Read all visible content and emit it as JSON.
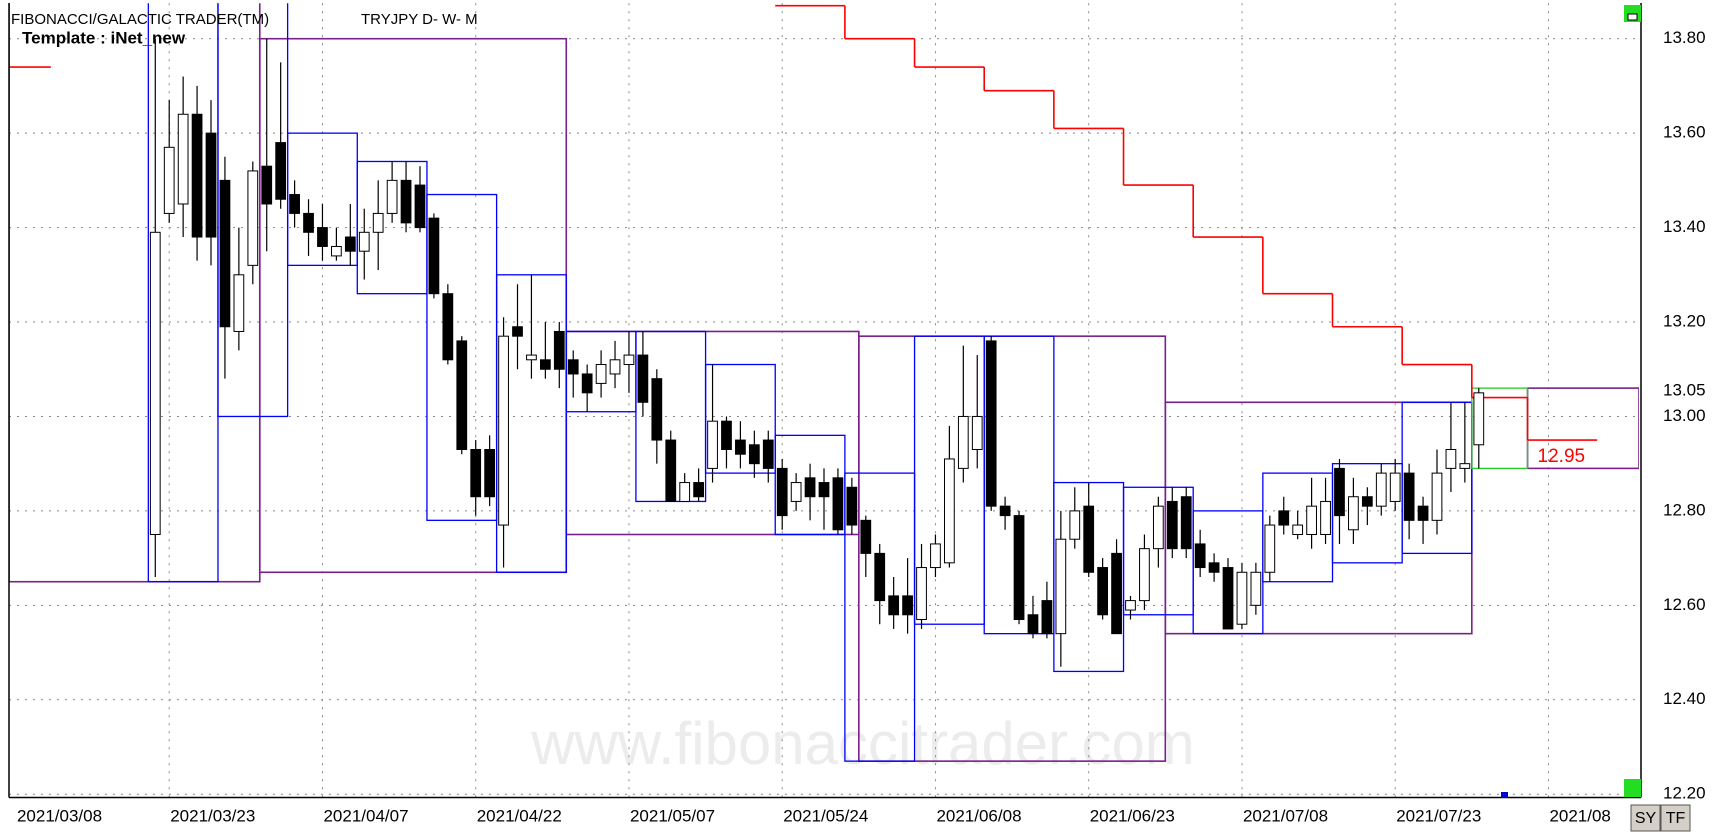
{
  "chart_data": {
    "type": "candlestick",
    "title": "FIBONACCI/GALACTIC TRADER(TM)",
    "subtitle": "TRYJPY D- W- M",
    "template": "Template : iNet_new",
    "watermark": "www.fibonaccitrader.com",
    "categories": [
      "2021/03/08",
      null,
      null,
      null,
      null,
      null,
      null,
      null,
      null,
      null,
      null,
      "2021/03/23",
      null,
      null,
      null,
      null,
      null,
      null,
      null,
      null,
      null,
      null,
      "2021/04/07",
      null,
      null,
      null,
      null,
      null,
      null,
      null,
      null,
      null,
      null,
      "2021/04/22",
      null,
      null,
      null,
      null,
      null,
      null,
      null,
      null,
      null,
      null,
      "2021/05/07",
      null,
      null,
      null,
      null,
      null,
      null,
      null,
      null,
      null,
      null,
      "2021/05/24",
      null,
      null,
      null,
      null,
      null,
      null,
      null,
      null,
      null,
      null,
      "2021/06/08",
      null,
      null,
      null,
      null,
      null,
      null,
      null,
      null,
      null,
      null,
      "2021/06/23",
      null,
      null,
      null,
      null,
      null,
      null,
      null,
      null,
      null,
      null,
      "2021/07/08",
      null,
      null,
      null,
      null,
      null,
      null,
      null,
      null,
      null,
      null,
      "2021/07/23",
      null,
      null,
      null,
      null,
      null,
      null,
      null,
      null,
      null,
      null,
      "2021/08",
      null,
      null,
      null,
      null,
      null,
      null
    ],
    "open": [
      null,
      null,
      null,
      null,
      null,
      null,
      null,
      null,
      null,
      null,
      12.75,
      13.43,
      13.45,
      13.64,
      13.6,
      13.5,
      13.18,
      13.32,
      13.53,
      13.58,
      13.47,
      13.43,
      13.4,
      13.34,
      13.38,
      13.35,
      13.39,
      13.43,
      13.5,
      13.49,
      13.42,
      13.26,
      13.16,
      12.93,
      12.93,
      12.77,
      13.19,
      13.12,
      13.12,
      13.18,
      13.12,
      13.09,
      13.07,
      13.09,
      13.11,
      13.13,
      13.08,
      12.95,
      12.82,
      12.86,
      12.89,
      12.99,
      12.95,
      12.94,
      12.95,
      12.89,
      12.82,
      12.87,
      12.86,
      12.87,
      12.85,
      12.78,
      12.71,
      12.62,
      12.62,
      12.57,
      12.68,
      12.69,
      12.89,
      12.93,
      13.16,
      12.81,
      12.79,
      12.58,
      12.61,
      12.54,
      12.74,
      12.81,
      12.68,
      12.71,
      12.59,
      12.61,
      12.72,
      12.82,
      12.83,
      12.73,
      12.69,
      12.68,
      12.56,
      12.6,
      12.67,
      12.8,
      12.75,
      12.75,
      12.75,
      12.89,
      12.76,
      12.83,
      12.81,
      12.82,
      12.88,
      12.81,
      12.78,
      12.89,
      12.89,
      12.94,
      null,
      null,
      null,
      null,
      null,
      null,
      null,
      null,
      null,
      null,
      null
    ],
    "high": [
      null,
      null,
      null,
      null,
      null,
      null,
      null,
      null,
      null,
      null,
      13.8,
      13.67,
      13.72,
      13.7,
      13.67,
      13.55,
      13.4,
      13.54,
      13.8,
      13.75,
      13.5,
      13.46,
      13.45,
      13.4,
      13.45,
      13.44,
      13.5,
      13.54,
      13.54,
      13.53,
      13.43,
      13.28,
      13.17,
      12.95,
      12.96,
      13.21,
      13.28,
      13.3,
      13.2,
      13.2,
      13.14,
      13.11,
      13.14,
      13.16,
      13.18,
      13.18,
      13.1,
      12.97,
      12.88,
      12.89,
      13.11,
      13.0,
      12.99,
      12.97,
      12.97,
      12.91,
      12.88,
      12.9,
      12.89,
      12.89,
      12.87,
      12.79,
      12.73,
      12.66,
      12.7,
      12.73,
      12.75,
      12.98,
      13.15,
      13.13,
      13.17,
      12.83,
      12.8,
      12.62,
      12.65,
      12.8,
      12.85,
      12.86,
      12.7,
      12.74,
      12.62,
      12.75,
      12.83,
      12.85,
      12.85,
      12.76,
      12.71,
      12.7,
      12.69,
      12.69,
      12.79,
      12.83,
      12.8,
      12.87,
      12.87,
      12.91,
      12.87,
      12.85,
      12.9,
      12.91,
      12.9,
      12.83,
      12.93,
      13.03,
      13.03,
      13.06,
      null,
      null,
      null,
      null,
      null,
      null,
      null,
      null,
      null,
      null,
      null
    ],
    "low": [
      null,
      null,
      null,
      null,
      null,
      null,
      null,
      null,
      null,
      null,
      12.66,
      13.41,
      13.38,
      13.33,
      13.32,
      13.08,
      13.14,
      13.28,
      13.35,
      13.44,
      13.4,
      13.34,
      13.33,
      13.33,
      13.32,
      13.29,
      13.31,
      13.41,
      13.39,
      13.39,
      13.25,
      13.11,
      12.92,
      12.79,
      12.81,
      12.68,
      13.1,
      13.08,
      13.08,
      13.06,
      13.04,
      13.01,
      13.04,
      13.06,
      13.05,
      13.0,
      12.9,
      12.82,
      12.82,
      12.82,
      12.86,
      12.89,
      12.89,
      12.87,
      12.86,
      12.76,
      12.8,
      12.78,
      12.76,
      12.75,
      12.75,
      12.66,
      12.56,
      12.55,
      12.54,
      12.55,
      12.66,
      12.68,
      12.86,
      12.89,
      12.8,
      12.76,
      12.56,
      12.53,
      12.53,
      12.47,
      12.72,
      12.66,
      12.57,
      12.54,
      12.57,
      12.59,
      12.68,
      12.7,
      12.7,
      12.66,
      12.65,
      12.55,
      12.55,
      12.58,
      12.65,
      12.75,
      12.74,
      12.72,
      12.73,
      12.73,
      12.73,
      12.77,
      12.79,
      12.8,
      12.74,
      12.73,
      12.75,
      12.84,
      12.86,
      12.89,
      null,
      null,
      null,
      null,
      null,
      null,
      null,
      null,
      null,
      null,
      null
    ],
    "close": [
      null,
      null,
      null,
      null,
      null,
      null,
      null,
      null,
      null,
      null,
      13.39,
      13.57,
      13.64,
      13.38,
      13.38,
      13.19,
      13.3,
      13.52,
      13.45,
      13.46,
      13.43,
      13.39,
      13.36,
      13.36,
      13.35,
      13.39,
      13.43,
      13.5,
      13.41,
      13.4,
      13.26,
      13.12,
      12.93,
      12.83,
      12.83,
      13.17,
      13.17,
      13.13,
      13.1,
      13.1,
      13.09,
      13.05,
      13.11,
      13.12,
      13.13,
      13.03,
      12.95,
      12.82,
      12.86,
      12.83,
      12.99,
      12.93,
      12.92,
      12.9,
      12.89,
      12.79,
      12.86,
      12.83,
      12.83,
      12.76,
      12.77,
      12.71,
      12.61,
      12.58,
      12.58,
      12.68,
      12.73,
      12.91,
      13.0,
      13.0,
      12.81,
      12.79,
      12.57,
      12.54,
      12.54,
      12.74,
      12.8,
      12.67,
      12.58,
      12.54,
      12.61,
      12.72,
      12.81,
      12.72,
      12.72,
      12.68,
      12.67,
      12.55,
      12.67,
      12.67,
      12.77,
      12.77,
      12.77,
      12.81,
      12.82,
      12.79,
      12.83,
      12.81,
      12.88,
      12.88,
      12.78,
      12.78,
      12.88,
      12.93,
      12.9,
      13.05,
      null,
      null,
      null,
      null,
      null,
      null,
      null,
      null,
      null,
      null,
      null
    ],
    "last_price_index": 105,
    "up_color": "#ffffff",
    "down_color": "#000000",
    "ylim": [
      12.193,
      13.875
    ],
    "yticks": [
      {
        "value": 13.8,
        "label": "13.80"
      },
      {
        "value": 13.6,
        "label": "13.60"
      },
      {
        "value": 13.4,
        "label": "13.40"
      },
      {
        "value": 13.2,
        "label": "13.20"
      },
      {
        "value": 13.0,
        "label": "13.00"
      },
      {
        "value": 12.8,
        "label": "12.80"
      },
      {
        "value": 12.6,
        "label": "12.60"
      },
      {
        "value": 12.4,
        "label": "12.40"
      },
      {
        "value": 12.2,
        "label": "12.20"
      }
    ],
    "grid": true,
    "step_line": {
      "color": "#ff0000",
      "segments": [
        {
          "from": -0.5,
          "to": 2.5,
          "value": 13.74
        },
        {
          "from": 54.5,
          "to": 59.5,
          "value": 13.87
        },
        {
          "from": 59.5,
          "to": 64.5,
          "value": 13.8
        },
        {
          "from": 64.5,
          "to": 69.5,
          "value": 13.74
        },
        {
          "from": 69.5,
          "to": 74.5,
          "value": 13.69
        },
        {
          "from": 74.5,
          "to": 79.5,
          "value": 13.61
        },
        {
          "from": 79.5,
          "to": 84.5,
          "value": 13.49
        },
        {
          "from": 84.5,
          "to": 89.5,
          "value": 13.38
        },
        {
          "from": 89.5,
          "to": 94.5,
          "value": 13.26
        },
        {
          "from": 94.5,
          "to": 99.5,
          "value": 13.19
        },
        {
          "from": 99.5,
          "to": 104.5,
          "value": 13.11
        },
        {
          "from": 104.5,
          "to": 108.5,
          "value": 13.04
        },
        {
          "from": 108.5,
          "to": 113.5,
          "value": 12.95
        }
      ]
    },
    "monthly_boxes": {
      "color": "#7b1f8c",
      "boxes": [
        {
          "from": -0.5,
          "to": 17.5,
          "high": 13.88,
          "low": 12.65
        },
        {
          "from": 17.5,
          "to": 39.5,
          "high": 13.8,
          "low": 12.67
        },
        {
          "from": 39.5,
          "to": 60.5,
          "high": 13.18,
          "low": 12.75
        },
        {
          "from": 60.5,
          "to": 82.5,
          "high": 13.17,
          "low": 12.27
        },
        {
          "from": 82.5,
          "to": 104.5,
          "high": 13.03,
          "low": 12.54
        },
        {
          "from": 108.5,
          "to": 116.5,
          "high": 13.06,
          "low": 12.89
        }
      ]
    },
    "weekly_boxes": {
      "color": "#0000ff",
      "boxes": [
        {
          "from": 9.5,
          "to": 14.5,
          "high": 13.88,
          "low": 12.65
        },
        {
          "from": 14.5,
          "to": 19.5,
          "high": 13.88,
          "low": 13.0
        },
        {
          "from": 19.5,
          "to": 24.5,
          "high": 13.6,
          "low": 13.32
        },
        {
          "from": 24.5,
          "to": 29.5,
          "high": 13.54,
          "low": 13.26
        },
        {
          "from": 29.5,
          "to": 34.5,
          "high": 13.47,
          "low": 12.78
        },
        {
          "from": 34.5,
          "to": 39.5,
          "high": 13.3,
          "low": 12.67
        },
        {
          "from": 39.5,
          "to": 44.5,
          "high": 13.18,
          "low": 13.01
        },
        {
          "from": 44.5,
          "to": 49.5,
          "high": 13.18,
          "low": 12.82
        },
        {
          "from": 49.5,
          "to": 54.5,
          "high": 13.11,
          "low": 12.88
        },
        {
          "from": 54.5,
          "to": 59.5,
          "high": 12.96,
          "low": 12.75
        },
        {
          "from": 59.5,
          "to": 64.5,
          "high": 12.88,
          "low": 12.27
        },
        {
          "from": 64.5,
          "to": 69.5,
          "high": 13.17,
          "low": 12.56
        },
        {
          "from": 69.5,
          "to": 74.5,
          "high": 13.17,
          "low": 12.54
        },
        {
          "from": 74.5,
          "to": 79.5,
          "high": 12.86,
          "low": 12.46
        },
        {
          "from": 79.5,
          "to": 84.5,
          "high": 12.85,
          "low": 12.58
        },
        {
          "from": 84.5,
          "to": 89.5,
          "high": 12.8,
          "low": 12.54
        },
        {
          "from": 89.5,
          "to": 94.5,
          "high": 12.88,
          "low": 12.65
        },
        {
          "from": 94.5,
          "to": 99.5,
          "high": 12.9,
          "low": 12.69
        },
        {
          "from": 99.5,
          "to": 104.5,
          "high": 13.03,
          "low": 12.71
        }
      ]
    },
    "current_week_box": {
      "color": "#22cc22",
      "from": 104.5,
      "to": 108.5,
      "high": 13.06,
      "low": 12.89
    }
  },
  "toolbar": [
    "SY",
    "TF"
  ]
}
